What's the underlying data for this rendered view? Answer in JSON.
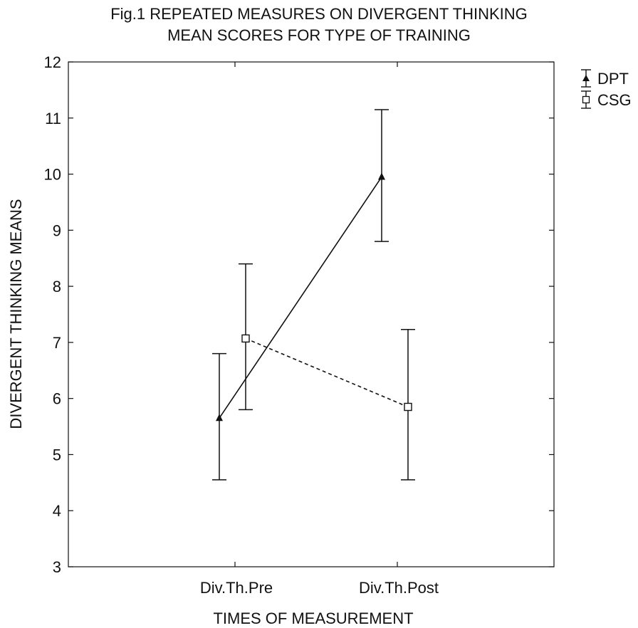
{
  "chart_data": {
    "type": "line",
    "title": [
      "Fig.1 REPEATED MEASURES ON DIVERGENT THINKING",
      "MEAN SCORES FOR TYPE OF TRAINING"
    ],
    "xlabel": "TIMES OF MEASUREMENT",
    "ylabel": "DIVERGENT THINKING MEANS",
    "categories": [
      "Div.Th.Pre",
      "Div.Th.Post"
    ],
    "ylim": [
      3,
      12
    ],
    "yticks": [
      3,
      4,
      5,
      6,
      7,
      8,
      9,
      10,
      11,
      12
    ],
    "grid": false,
    "legend_position": "top-right, outside plot",
    "series": [
      {
        "name": "DPT",
        "marker": "filled-triangle",
        "line_style": "solid",
        "color": "#111111",
        "values": [
          5.65,
          9.95
        ],
        "error_low": [
          4.55,
          8.8
        ],
        "error_high": [
          6.8,
          11.15
        ]
      },
      {
        "name": "CSG",
        "marker": "open-square",
        "line_style": "dashed",
        "color": "#111111",
        "values": [
          7.07,
          5.85
        ],
        "error_low": [
          5.8,
          4.55
        ],
        "error_high": [
          8.4,
          7.23
        ]
      }
    ]
  }
}
